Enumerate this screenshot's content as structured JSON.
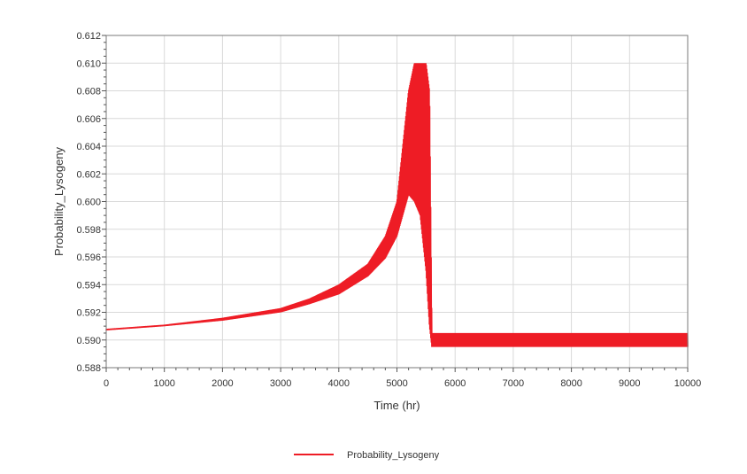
{
  "chart_data": {
    "type": "line",
    "xlabel": "Time (hr)",
    "ylabel": "Probability_Lysogeny",
    "xlim": [
      0,
      10000
    ],
    "ylim": [
      0.588,
      0.612
    ],
    "x_ticks": [
      "0",
      "1000",
      "2000",
      "3000",
      "4000",
      "5000",
      "6000",
      "7000",
      "8000",
      "9000",
      "10000"
    ],
    "y_ticks": [
      "0.588",
      "0.590",
      "0.592",
      "0.594",
      "0.596",
      "0.598",
      "0.600",
      "0.602",
      "0.604",
      "0.606",
      "0.608",
      "0.610",
      "0.612"
    ],
    "grid": true,
    "legend_position": "bottom-center",
    "series": [
      {
        "name": "Probability_Lysogeny",
        "color": "#ee1c25",
        "style": "oscillating band (lower and upper envelope)",
        "x": [
          0,
          1000,
          2000,
          3000,
          3500,
          4000,
          4500,
          4800,
          5000,
          5200,
          5300,
          5400,
          5500,
          5560,
          5600,
          5700,
          10000
        ],
        "lower": [
          0.5907,
          0.591,
          0.5914,
          0.592,
          0.5926,
          0.5933,
          0.5946,
          0.5959,
          0.5975,
          0.6005,
          0.6,
          0.599,
          0.595,
          0.591,
          0.5895,
          0.5895,
          0.5895
        ],
        "upper": [
          0.5908,
          0.5911,
          0.5916,
          0.5923,
          0.593,
          0.594,
          0.5955,
          0.5975,
          0.6,
          0.608,
          0.61,
          0.61,
          0.61,
          0.608,
          0.5905,
          0.5905,
          0.5905
        ]
      }
    ]
  }
}
